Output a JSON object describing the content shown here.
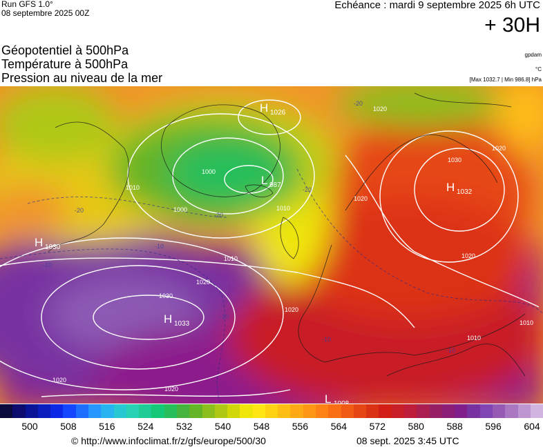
{
  "header": {
    "run": "Run GFS 1.0°",
    "run_date": "08 septembre 2025 00Z",
    "echeance": "Echéance : mardi 9 septembre 2025 6h UTC",
    "step": "+ 30H"
  },
  "titles": {
    "line1": "Géopotentiel à 500hPa",
    "line2": "Température à 500hPa",
    "line3": "Pression au niveau de la mer"
  },
  "units": {
    "geopotential": "gpdam",
    "temperature": "°C",
    "maxmin": "[Max 1032.7 | Min 986.8] hPa"
  },
  "map": {
    "highs": [
      {
        "label": "H",
        "value": "1026"
      },
      {
        "label": "H",
        "value": "1032"
      },
      {
        "label": "H",
        "value": "1030"
      },
      {
        "label": "H",
        "value": "1033"
      }
    ],
    "lows": [
      {
        "label": "L",
        "value": "987"
      },
      {
        "label": "L",
        "value": "1008"
      }
    ],
    "isobar_labels": [
      "1020",
      "1020",
      "1010",
      "1000",
      "1000",
      "1010",
      "1010",
      "1020",
      "1020",
      "1030",
      "1030",
      "1020",
      "1020",
      "1020",
      "1010",
      "1010",
      "1020"
    ],
    "temperature_labels": [
      "-20",
      "-20",
      "-20",
      "-10",
      "-10",
      "-10",
      "-10",
      "-10",
      "-20"
    ]
  },
  "scale": {
    "colors": [
      "#0a0a3c",
      "#0c0c6e",
      "#0a1496",
      "#0a1ebe",
      "#0a28e6",
      "#1446ff",
      "#1e6eff",
      "#2896ff",
      "#28b4f0",
      "#28c8d2",
      "#28d2b4",
      "#1ecd96",
      "#14c878",
      "#28be5a",
      "#46b43c",
      "#64b428",
      "#8cbe1e",
      "#afc814",
      "#d2d70a",
      "#f0e60a",
      "#ffe614",
      "#ffd214",
      "#ffbe14",
      "#ffaa14",
      "#ff9614",
      "#ff8214",
      "#fa6e14",
      "#f05a14",
      "#e64614",
      "#dc3214",
      "#d21e14",
      "#c81e28",
      "#be1e3c",
      "#aa1e50",
      "#961e64",
      "#8c1e78",
      "#821e8c",
      "#7832a0",
      "#8246b4",
      "#965ab4",
      "#aa78c3",
      "#be96d2",
      "#d2b4e1"
    ],
    "ticks": [
      "500",
      "508",
      "516",
      "524",
      "532",
      "540",
      "548",
      "556",
      "564",
      "572",
      "580",
      "588",
      "596",
      "604"
    ]
  },
  "footer": {
    "copyright": "© http://www.infoclimat.fr/z/gfs/europe/500/30",
    "date": "08 sept. 2025  3:45 UTC"
  }
}
